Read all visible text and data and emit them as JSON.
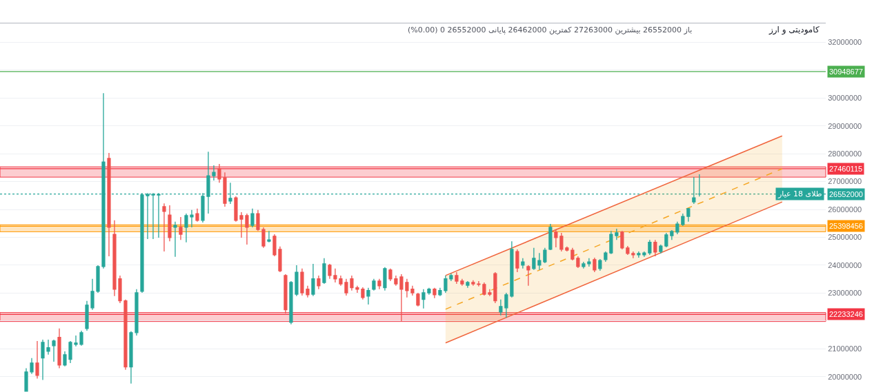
{
  "chart_data": {
    "type": "candlestick",
    "title": "کامودیتی و ارز",
    "annotations": [
      "باز 26552000 بیشترین 27263000 کمترین 26462000 پایانی 26552000 0 (0.00%)"
    ],
    "categories": [
      null,
      null,
      null,
      null,
      null,
      null,
      null,
      null,
      null,
      null,
      null,
      null,
      null,
      null,
      null,
      null,
      null,
      null,
      null,
      null,
      null,
      null,
      null,
      null,
      null,
      null,
      null,
      null,
      null,
      null,
      null,
      null,
      null,
      null,
      null,
      null,
      null,
      null,
      null,
      null,
      null,
      null,
      null,
      null,
      null,
      null,
      null,
      null,
      null,
      null,
      null,
      null,
      null,
      null,
      null,
      null,
      null,
      null,
      null,
      null,
      null,
      null,
      null,
      null,
      null,
      null,
      null,
      null,
      null,
      null,
      null,
      null,
      null,
      null,
      null,
      null,
      null,
      null,
      null,
      null,
      null,
      null,
      null,
      null,
      null,
      null,
      null,
      null,
      null,
      null,
      null,
      null,
      null,
      null,
      null,
      null,
      null,
      null,
      null,
      null,
      null,
      null,
      null,
      null,
      null,
      null,
      null,
      null,
      null,
      null,
      null,
      null,
      null,
      null,
      null,
      null,
      null,
      null,
      null,
      null,
      null,
      null,
      null,
      null,
      null,
      null,
      null,
      null,
      null,
      null,
      null,
      null,
      null,
      null,
      null,
      null,
      null,
      null,
      null,
      null,
      null,
      null,
      null,
      null,
      null
    ],
    "series": [
      {
        "type": "line",
        "values": [
          null,
          null,
          null,
          null,
          null,
          null,
          null,
          null,
          null,
          null,
          null,
          null,
          null,
          null,
          null,
          null,
          null,
          null,
          null,
          null,
          null,
          null,
          null,
          null,
          null,
          null,
          null,
          null,
          null,
          null,
          null,
          null,
          null,
          null,
          null,
          null,
          null,
          null,
          null,
          null,
          null,
          null,
          null,
          null,
          null,
          null,
          null,
          null,
          null,
          null,
          null,
          null,
          null,
          null,
          null,
          null,
          null,
          null,
          null,
          null,
          null,
          null,
          null,
          null,
          null,
          null,
          null,
          null,
          null,
          null,
          null,
          null,
          null,
          null,
          null,
          null,
          22420000,
          null,
          null,
          null,
          null,
          null,
          null,
          null,
          null,
          null,
          null,
          null,
          null,
          null,
          null,
          null,
          null,
          null,
          null,
          null,
          null,
          null,
          null,
          null,
          null,
          null,
          null,
          null,
          null,
          null,
          null,
          null,
          null,
          null,
          null,
          null,
          null,
          null,
          null,
          null,
          null,
          null,
          null,
          null,
          null,
          null,
          null,
          null,
          null,
          null,
          null,
          null,
          null,
          null,
          null,
          null,
          null,
          null,
          null,
          null,
          null,
          27460000,
          null,
          null,
          null,
          null,
          null,
          null,
          null
        ],
        "lower": [
          null,
          null,
          null,
          null,
          null,
          null,
          null,
          null,
          null,
          null,
          null,
          null,
          null,
          null,
          null,
          null,
          null,
          null,
          null,
          null,
          null,
          null,
          null,
          null,
          null,
          null,
          null,
          null,
          null,
          null,
          null,
          null,
          null,
          null,
          null,
          null,
          null,
          null,
          null,
          null,
          null,
          null,
          null,
          null,
          null,
          null,
          null,
          null,
          null,
          null,
          null,
          null,
          null,
          null,
          null,
          null,
          null,
          null,
          null,
          null,
          null,
          null,
          null,
          null,
          null,
          null,
          null,
          null,
          null,
          null,
          null,
          null,
          null,
          null,
          null,
          null,
          21210000,
          null,
          null,
          null,
          null,
          null,
          null,
          null,
          null,
          null,
          null,
          null,
          null,
          null,
          null,
          null,
          null,
          null,
          null,
          null,
          null,
          null,
          null,
          null,
          null,
          null,
          null,
          null,
          null,
          null,
          null,
          null,
          null,
          null,
          null,
          null,
          null,
          null,
          null,
          null,
          null,
          null,
          null,
          null,
          null,
          null,
          null,
          null,
          null,
          null,
          null,
          null,
          null,
          null,
          null,
          null,
          null,
          null,
          null,
          null,
          null,
          26270000,
          null,
          null,
          null,
          null,
          null,
          null,
          null
        ],
        "upper": [
          null,
          null,
          null,
          null,
          null,
          null,
          null,
          null,
          null,
          null,
          null,
          null,
          null,
          null,
          null,
          null,
          null,
          null,
          null,
          null,
          null,
          null,
          null,
          null,
          null,
          null,
          null,
          null,
          null,
          null,
          null,
          null,
          null,
          null,
          null,
          null,
          null,
          null,
          null,
          null,
          null,
          null,
          null,
          null,
          null,
          null,
          null,
          null,
          null,
          null,
          null,
          null,
          null,
          null,
          null,
          null,
          null,
          null,
          null,
          null,
          null,
          null,
          null,
          null,
          null,
          null,
          null,
          null,
          null,
          null,
          null,
          null,
          null,
          null,
          null,
          null,
          23630000,
          null,
          null,
          null,
          null,
          null,
          null,
          null,
          null,
          null,
          null,
          null,
          null,
          null,
          null,
          null,
          null,
          null,
          null,
          null,
          null,
          null,
          null,
          null,
          null,
          null,
          null,
          null,
          null,
          null,
          null,
          null,
          null,
          null,
          null,
          null,
          null,
          null,
          null,
          null,
          null,
          null,
          null,
          null,
          null,
          null,
          null,
          null,
          null,
          null,
          null,
          null,
          null,
          null,
          null,
          null,
          null,
          null,
          null,
          null,
          null,
          28640000,
          null,
          null,
          null,
          null,
          null,
          null,
          null
        ],
        "color": "#f5a623",
        "line_style": "dashed"
      },
      {
        "type": "line",
        "values": [
          null,
          null,
          null,
          null,
          null,
          null,
          null,
          null,
          null,
          null,
          null,
          null,
          null,
          null,
          null,
          null,
          null,
          null,
          null,
          null,
          null,
          null,
          null,
          null,
          null,
          null,
          null,
          null,
          null,
          null,
          null,
          null,
          null,
          null,
          null,
          null,
          null,
          null,
          null,
          null,
          null,
          null,
          null,
          null,
          null,
          null,
          null,
          null,
          null,
          null,
          null,
          null,
          null,
          null,
          null,
          null,
          null,
          null,
          null,
          null,
          null,
          null,
          null,
          null,
          null,
          null,
          null,
          null,
          null,
          null,
          null,
          null,
          null,
          null,
          null,
          null,
          23630000,
          null,
          null,
          null,
          null,
          null,
          null,
          null,
          null,
          null,
          null,
          null,
          null,
          null,
          null,
          null,
          null,
          null,
          null,
          null,
          null,
          null,
          null,
          null,
          null,
          null,
          null,
          null,
          null,
          null,
          null,
          null,
          null,
          null,
          null,
          null,
          null,
          null,
          null,
          null,
          null,
          null,
          null,
          null,
          null,
          null,
          null,
          null,
          null,
          null,
          null,
          null,
          null,
          null,
          null,
          null,
          null,
          null,
          null,
          null,
          null,
          28640000,
          null,
          null,
          null,
          null,
          null,
          null,
          null
        ],
        "color": "#f0643c"
      },
      {
        "type": "line",
        "values": [
          null,
          null,
          null,
          null,
          null,
          null,
          null,
          null,
          null,
          null,
          null,
          null,
          null,
          null,
          null,
          null,
          null,
          null,
          null,
          null,
          null,
          null,
          null,
          null,
          null,
          null,
          null,
          null,
          null,
          null,
          null,
          null,
          null,
          null,
          null,
          null,
          null,
          null,
          null,
          null,
          null,
          null,
          null,
          null,
          null,
          null,
          null,
          null,
          null,
          null,
          null,
          null,
          null,
          null,
          null,
          null,
          null,
          null,
          null,
          null,
          null,
          null,
          null,
          null,
          null,
          null,
          null,
          null,
          null,
          null,
          null,
          null,
          null,
          null,
          null,
          null,
          21210000,
          null,
          null,
          null,
          null,
          null,
          null,
          null,
          null,
          null,
          null,
          null,
          null,
          null,
          null,
          null,
          null,
          null,
          null,
          null,
          null,
          null,
          null,
          null,
          null,
          null,
          null,
          null,
          null,
          null,
          null,
          null,
          null,
          null,
          null,
          null,
          null,
          null,
          null,
          null,
          null,
          null,
          null,
          null,
          null,
          null,
          null,
          null,
          null,
          null,
          null,
          null,
          null,
          null,
          null,
          null,
          null,
          null,
          null,
          null,
          null,
          26270000,
          null,
          null,
          null,
          null,
          null,
          null,
          null
        ],
        "color": "#f0643c"
      },
      {
        "name": "طلای 18 عیار",
        "ohlc": [
          [
            19480000,
            20300000,
            19460000,
            20170000
          ],
          [
            20170000,
            20670000,
            20100000,
            20490000
          ],
          [
            20490000,
            21280000,
            19930000,
            20050000
          ],
          [
            20670000,
            21330000,
            19880000,
            21230000
          ],
          [
            20910000,
            21330000,
            20790000,
            21040000
          ],
          [
            21110000,
            21330000,
            20540000,
            21280000
          ],
          [
            21410000,
            21730000,
            20300000,
            20420000
          ],
          [
            20420000,
            20910000,
            20370000,
            20790000
          ],
          [
            20620000,
            21280000,
            20490000,
            21230000
          ],
          [
            21160000,
            21480000,
            21090000,
            21210000
          ],
          [
            21160000,
            21650000,
            21110000,
            21580000
          ],
          [
            21730000,
            22720000,
            21650000,
            22570000
          ],
          [
            22470000,
            23510000,
            22400000,
            23060000
          ],
          [
            23060000,
            24000000,
            23010000,
            23950000
          ],
          [
            23950000,
            30170000,
            23880000,
            27700000
          ],
          [
            27830000,
            28030000,
            24320000,
            25360000
          ],
          [
            25110000,
            25610000,
            22890000,
            23140000
          ],
          [
            23510000,
            23630000,
            22640000,
            22720000
          ],
          [
            22720000,
            22770000,
            20250000,
            20350000
          ],
          [
            20350000,
            21630000,
            19750000,
            21580000
          ],
          [
            21580000,
            23140000,
            21480000,
            23010000
          ],
          [
            23060000,
            26590000,
            23010000,
            26520000
          ],
          [
            26490000,
            26590000,
            24940000,
            26540000
          ],
          [
            26520000,
            26590000,
            24940000,
            26540000
          ],
          [
            26520000,
            26590000,
            24990000,
            26540000
          ],
          [
            26100000,
            26220000,
            24490000,
            25930000
          ],
          [
            25800000,
            26150000,
            24860000,
            24990000
          ],
          [
            25360000,
            25560000,
            24300000,
            25430000
          ],
          [
            25360000,
            25730000,
            24910000,
            25110000
          ],
          [
            25360000,
            25850000,
            24820000,
            25780000
          ],
          [
            25730000,
            25980000,
            25360000,
            25800000
          ],
          [
            25850000,
            26030000,
            25560000,
            25610000
          ],
          [
            25610000,
            26590000,
            25530000,
            26470000
          ],
          [
            26470000,
            28070000,
            25850000,
            27210000
          ],
          [
            27210000,
            27580000,
            27040000,
            27330000
          ],
          [
            27460000,
            27630000,
            26960000,
            27090000
          ],
          [
            27140000,
            27330000,
            26100000,
            26220000
          ],
          [
            26300000,
            26960000,
            26200000,
            26400000
          ],
          [
            26420000,
            26470000,
            25560000,
            25610000
          ],
          [
            25780000,
            25900000,
            24990000,
            25650000
          ],
          [
            25780000,
            25850000,
            24740000,
            25360000
          ],
          [
            25430000,
            26030000,
            25360000,
            25850000
          ],
          [
            25850000,
            25980000,
            25230000,
            25280000
          ],
          [
            25280000,
            25360000,
            24620000,
            24690000
          ],
          [
            24860000,
            25230000,
            24820000,
            24910000
          ],
          [
            25040000,
            25110000,
            24320000,
            24370000
          ],
          [
            24570000,
            24670000,
            23750000,
            23800000
          ],
          [
            23630000,
            23680000,
            22270000,
            22400000
          ],
          [
            21950000,
            23430000,
            21880000,
            23380000
          ],
          [
            22960000,
            24000000,
            22890000,
            23750000
          ],
          [
            23750000,
            23880000,
            22910000,
            23010000
          ],
          [
            23140000,
            23260000,
            22840000,
            22940000
          ],
          [
            22960000,
            24050000,
            22890000,
            23510000
          ],
          [
            23510000,
            23630000,
            23140000,
            23260000
          ],
          [
            23380000,
            24250000,
            23330000,
            24050000
          ],
          [
            24000000,
            24050000,
            23510000,
            23630000
          ],
          [
            23630000,
            23880000,
            23380000,
            23510000
          ],
          [
            23510000,
            23630000,
            23260000,
            23330000
          ],
          [
            23380000,
            23510000,
            22910000,
            23010000
          ],
          [
            23510000,
            23630000,
            23090000,
            23190000
          ],
          [
            23190000,
            23260000,
            23010000,
            23140000
          ],
          [
            23140000,
            23210000,
            22770000,
            22840000
          ],
          [
            22890000,
            23190000,
            22590000,
            23090000
          ],
          [
            23140000,
            23510000,
            23090000,
            23430000
          ],
          [
            23430000,
            23510000,
            23140000,
            23260000
          ],
          [
            23190000,
            23930000,
            23090000,
            23880000
          ],
          [
            23830000,
            23880000,
            23430000,
            23510000
          ],
          [
            23510000,
            23630000,
            23260000,
            23330000
          ],
          [
            23580000,
            23680000,
            21970000,
            23140000
          ],
          [
            23380000,
            23510000,
            22840000,
            23090000
          ],
          [
            23140000,
            23260000,
            22910000,
            23010000
          ],
          [
            22960000,
            23010000,
            22520000,
            22570000
          ],
          [
            22770000,
            23140000,
            22450000,
            23010000
          ],
          [
            23010000,
            23190000,
            22940000,
            23140000
          ],
          [
            23140000,
            23190000,
            22820000,
            22940000
          ],
          [
            22940000,
            23190000,
            22890000,
            23090000
          ],
          [
            23090000,
            23630000,
            23010000,
            23510000
          ],
          [
            23510000,
            23700000,
            23430000,
            23630000
          ],
          [
            23630000,
            23750000,
            23330000,
            23430000
          ],
          [
            23430000,
            23510000,
            23260000,
            23330000
          ],
          [
            23280000,
            23430000,
            23190000,
            23380000
          ],
          [
            23380000,
            23460000,
            23260000,
            23330000
          ],
          [
            23330000,
            23430000,
            23240000,
            23310000
          ],
          [
            23310000,
            23380000,
            22910000,
            22960000
          ],
          [
            23010000,
            23140000,
            22890000,
            22960000
          ],
          [
            23700000,
            23750000,
            22640000,
            22720000
          ],
          [
            22320000,
            22770000,
            22200000,
            22520000
          ],
          [
            22470000,
            23010000,
            22120000,
            22940000
          ],
          [
            22890000,
            24860000,
            22840000,
            24570000
          ],
          [
            24490000,
            24570000,
            23750000,
            23900000
          ],
          [
            24000000,
            24250000,
            23880000,
            24120000
          ],
          [
            23950000,
            24000000,
            23260000,
            23830000
          ],
          [
            23880000,
            24620000,
            23830000,
            24250000
          ],
          [
            24000000,
            24440000,
            23830000,
            24170000
          ],
          [
            24120000,
            24620000,
            24070000,
            24540000
          ],
          [
            24570000,
            25480000,
            24540000,
            25360000
          ],
          [
            25190000,
            25280000,
            24640000,
            24990000
          ],
          [
            25040000,
            25160000,
            24490000,
            24570000
          ],
          [
            24620000,
            24670000,
            24490000,
            24540000
          ],
          [
            24540000,
            24620000,
            24170000,
            24220000
          ],
          [
            24250000,
            24320000,
            23900000,
            23950000
          ],
          [
            23950000,
            24120000,
            23880000,
            24050000
          ],
          [
            24050000,
            24250000,
            23950000,
            24120000
          ],
          [
            24200000,
            24270000,
            23750000,
            23830000
          ],
          [
            23880000,
            24220000,
            23800000,
            24170000
          ],
          [
            24200000,
            24490000,
            24120000,
            24440000
          ],
          [
            24440000,
            25230000,
            24400000,
            25110000
          ],
          [
            25060000,
            25310000,
            24910000,
            25160000
          ],
          [
            25190000,
            25230000,
            24570000,
            24620000
          ],
          [
            24620000,
            24690000,
            24370000,
            24420000
          ],
          [
            24420000,
            24490000,
            24250000,
            24370000
          ],
          [
            24370000,
            24490000,
            24270000,
            24420000
          ],
          [
            24370000,
            24490000,
            24300000,
            24440000
          ],
          [
            24440000,
            24910000,
            24370000,
            24820000
          ],
          [
            24820000,
            24910000,
            24320000,
            24470000
          ],
          [
            24490000,
            24740000,
            24420000,
            24690000
          ],
          [
            24690000,
            25160000,
            24640000,
            25090000
          ],
          [
            25060000,
            25260000,
            24910000,
            25210000
          ],
          [
            25190000,
            25560000,
            25110000,
            25480000
          ],
          [
            25460000,
            25850000,
            25410000,
            25750000
          ],
          [
            25750000,
            26050000,
            25560000,
            26030000
          ],
          [
            26270000,
            27160000,
            26200000,
            26420000
          ],
          [
            26552000,
            27263000,
            26462000,
            26552000
          ],
          null,
          null,
          null,
          null,
          null,
          null,
          null,
          null,
          null,
          null,
          null,
          null,
          null,
          null,
          null,
          null,
          null,
          null,
          null,
          null,
          null,
          null
        ],
        "colors": [
          "#26a69a",
          "#26a69a",
          "#ef5350",
          "#26a69a",
          "#26a69a",
          "#26a69a",
          "#ef5350",
          "#26a69a",
          "#26a69a",
          "#26a69a",
          "#26a69a",
          "#26a69a",
          "#26a69a",
          "#26a69a",
          "#26a69a",
          "#ef5350",
          "#ef5350",
          "#ef5350",
          "#ef5350",
          "#26a69a",
          "#26a69a",
          "#26a69a",
          "#26a69a",
          "#26a69a",
          "#26a69a",
          "#ef5350",
          "#ef5350",
          "#26a69a",
          "#ef5350",
          "#26a69a",
          "#26a69a",
          "#ef5350",
          "#26a69a",
          "#26a69a",
          "#26a69a",
          "#ef5350",
          "#ef5350",
          "#26a69a",
          "#ef5350",
          "#ef5350",
          "#ef5350",
          "#26a69a",
          "#ef5350",
          "#ef5350",
          "#26a69a",
          "#ef5350",
          "#ef5350",
          "#ef5350",
          "#26a69a",
          "#26a69a",
          "#ef5350",
          "#ef5350",
          "#26a69a",
          "#ef5350",
          "#26a69a",
          "#ef5350",
          "#ef5350",
          "#ef5350",
          "#ef5350",
          "#ef5350",
          "#ef5350",
          "#ef5350",
          "#26a69a",
          "#26a69a",
          "#ef5350",
          "#26a69a",
          "#ef5350",
          "#ef5350",
          "#ef5350",
          "#ef5350",
          "#ef5350",
          "#ef5350",
          "#26a69a",
          "#26a69a",
          "#ef5350",
          "#26a69a",
          "#26a69a",
          "#26a69a",
          "#ef5350",
          "#ef5350",
          "#26a69a",
          "#ef5350",
          "#ef5350",
          "#ef5350",
          "#ef5350",
          "#ef5350",
          "#26a69a",
          "#26a69a",
          "#26a69a",
          "#ef5350",
          "#26a69a",
          "#ef5350",
          "#26a69a",
          "#26a69a",
          "#26a69a",
          "#26a69a",
          "#ef5350",
          "#ef5350",
          "#ef5350",
          "#ef5350",
          "#ef5350",
          "#26a69a",
          "#26a69a",
          "#ef5350",
          "#26a69a",
          "#26a69a",
          "#26a69a",
          "#26a69a",
          "#ef5350",
          "#ef5350",
          "#ef5350",
          "#26a69a",
          "#26a69a",
          "#26a69a",
          "#ef5350",
          "#26a69a",
          "#26a69a",
          "#26a69a",
          "#26a69a",
          "#26a69a",
          "#26a69a",
          "#26a69a",
          "#26a69a",
          null,
          null,
          null,
          null,
          null,
          null,
          null,
          null,
          null,
          null,
          null,
          null,
          null,
          null,
          null,
          null,
          null,
          null,
          null,
          null,
          null,
          null
        ]
      }
    ],
    "ylim": [
      19450000,
      32700000
    ],
    "yticks": [
      20000000,
      21000000,
      {
        "value": 22000000,
        "label": null
      },
      23000000,
      24000000,
      25000000,
      26000000,
      27000000,
      28000000,
      29000000,
      30000000,
      {
        "value": 31000000,
        "label": null
      },
      32000000
    ],
    "grid": "y",
    "tick_labels": "y",
    "ref_lines": [
      {
        "axis": "y",
        "value": 30948677,
        "label": "30948677",
        "color": "#4caf50"
      },
      {
        "axis": "y",
        "value": 27460115,
        "label": "27460115",
        "color": "#f23645"
      },
      {
        "axis": "y",
        "value": 26552000,
        "label": "26552000",
        "color": "#26a69a",
        "line_style": "dotted"
      },
      {
        "axis": "y",
        "value": 25398456,
        "label": "25398456",
        "color": "#ff9800"
      },
      {
        "axis": "y",
        "value": 22233246,
        "label": "22233246",
        "color": "#f23645"
      }
    ],
    "bands": [
      {
        "axis": "y",
        "from": 27160000,
        "to": 27530000,
        "color": "#f23645"
      },
      {
        "axis": "y",
        "from": 25200000,
        "to": 25450000,
        "color": "#ff9800"
      },
      {
        "axis": "y",
        "from": 21980000,
        "to": 22300000,
        "color": "#f23645"
      }
    ]
  }
}
